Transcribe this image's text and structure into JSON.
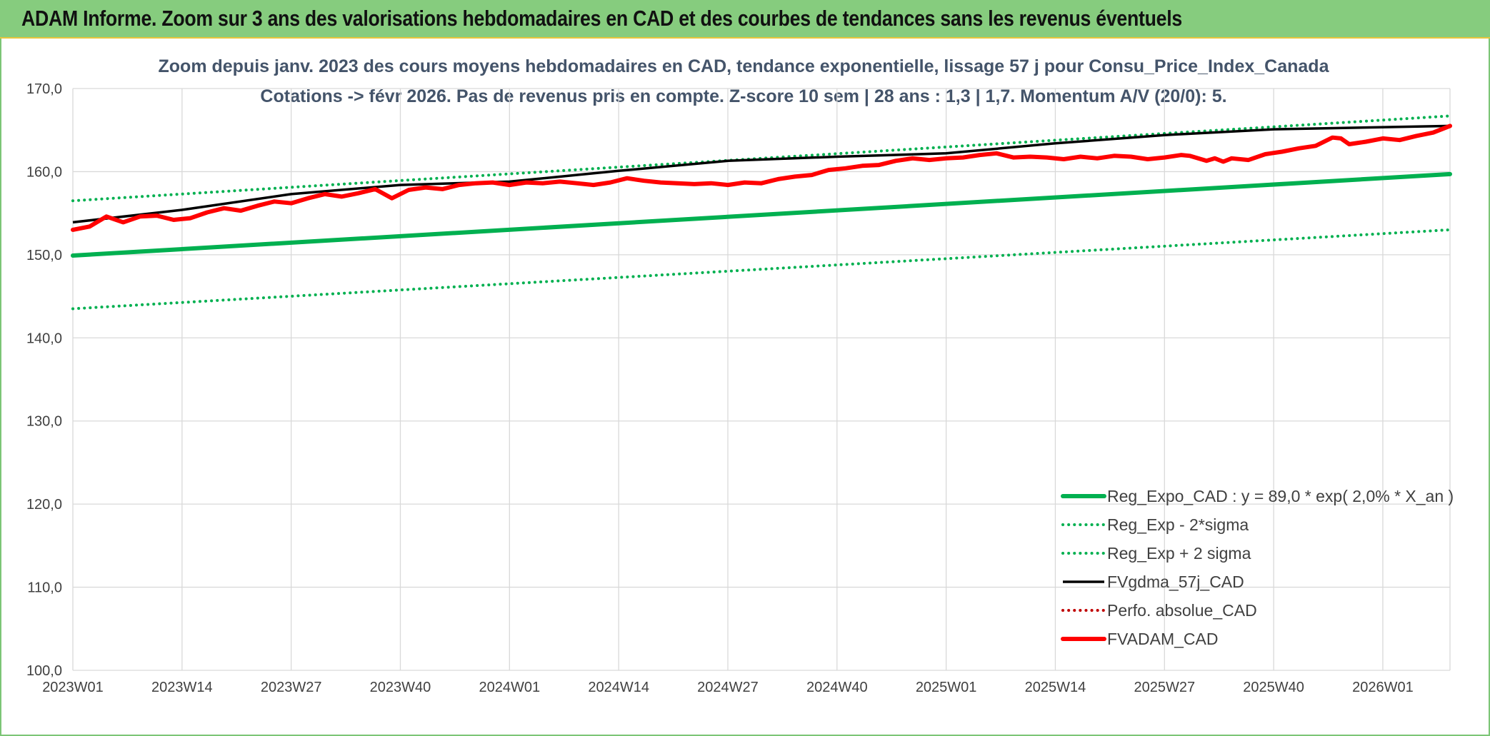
{
  "header": {
    "title": "ADAM Informe. Zoom sur 3 ans des valorisations hebdomadaires en CAD et des courbes de tendances sans les revenus éventuels"
  },
  "colors": {
    "banner": "#86cc7e",
    "trend": "#00b050",
    "smooth": "#000000",
    "price": "#ff0000",
    "grid": "#d9d9d9"
  },
  "chart_data": {
    "type": "line",
    "title": "",
    "subtitle_line1": "Zoom depuis janv. 2023 des cours moyens hebdomadaires en CAD, tendance exponentielle, lissage 57 j pour Consu_Price_Index_Canada",
    "subtitle_line2": "Cotations -> févr 2026. Pas de revenus pris en compte. Z-score 10 sem | 28 ans : 1,3 | 1,7. Momentum A/V (20/0): 5.",
    "xlabel": "",
    "ylabel": "",
    "ylim": [
      100,
      170
    ],
    "yticks": [
      "100,0",
      "110,0",
      "120,0",
      "130,0",
      "140,0",
      "150,0",
      "160,0",
      "170,0"
    ],
    "xticks": [
      "2023W01",
      "2023W14",
      "2023W27",
      "2023W40",
      "2024W01",
      "2024W14",
      "2024W27",
      "2024W40",
      "2025W01",
      "2025W14",
      "2025W27",
      "2025W40",
      "2026W01"
    ],
    "x_range_weeks": [
      0,
      164
    ],
    "grid": true,
    "legend_position": "bottom-right",
    "series": [
      {
        "name": "Reg_Expo_CAD : y = 89,0 * exp( 2,0% *  X_an )",
        "style": "solid-thick",
        "color": "#00b050",
        "points": [
          [
            0,
            149.9
          ],
          [
            164,
            159.7
          ]
        ]
      },
      {
        "name": "Reg_Exp - 2*sigma",
        "style": "dotted",
        "color": "#00b050",
        "points": [
          [
            0,
            143.5
          ],
          [
            164,
            153.0
          ]
        ]
      },
      {
        "name": "Reg_Exp + 2 sigma",
        "style": "dotted",
        "color": "#00b050",
        "points": [
          [
            0,
            156.5
          ],
          [
            164,
            166.7
          ]
        ]
      },
      {
        "name": "FVgdma_57j_CAD",
        "style": "solid",
        "color": "#000000",
        "points": [
          [
            0,
            153.9
          ],
          [
            13,
            155.4
          ],
          [
            26,
            157.3
          ],
          [
            39,
            158.4
          ],
          [
            52,
            158.8
          ],
          [
            65,
            160.1
          ],
          [
            78,
            161.3
          ],
          [
            91,
            161.8
          ],
          [
            104,
            162.2
          ],
          [
            117,
            163.4
          ],
          [
            130,
            164.4
          ],
          [
            143,
            165.1
          ],
          [
            164,
            165.5
          ]
        ]
      },
      {
        "name": "Perfo. absolue_CAD",
        "style": "dotted",
        "color": "#c00000",
        "points": []
      },
      {
        "name": "FVADAM_CAD",
        "style": "solid-thick",
        "color": "#ff0000",
        "points": [
          [
            0,
            153.0
          ],
          [
            2,
            153.4
          ],
          [
            4,
            154.6
          ],
          [
            6,
            153.9
          ],
          [
            8,
            154.6
          ],
          [
            10,
            154.7
          ],
          [
            12,
            154.2
          ],
          [
            14,
            154.4
          ],
          [
            16,
            155.1
          ],
          [
            18,
            155.6
          ],
          [
            20,
            155.3
          ],
          [
            22,
            155.9
          ],
          [
            24,
            156.4
          ],
          [
            26,
            156.2
          ],
          [
            28,
            156.8
          ],
          [
            30,
            157.3
          ],
          [
            32,
            157.0
          ],
          [
            34,
            157.4
          ],
          [
            36,
            157.9
          ],
          [
            38,
            156.8
          ],
          [
            40,
            157.8
          ],
          [
            42,
            158.1
          ],
          [
            44,
            157.9
          ],
          [
            46,
            158.4
          ],
          [
            48,
            158.6
          ],
          [
            50,
            158.7
          ],
          [
            52,
            158.4
          ],
          [
            54,
            158.7
          ],
          [
            56,
            158.6
          ],
          [
            58,
            158.8
          ],
          [
            60,
            158.6
          ],
          [
            62,
            158.4
          ],
          [
            64,
            158.7
          ],
          [
            66,
            159.2
          ],
          [
            68,
            158.9
          ],
          [
            70,
            158.7
          ],
          [
            72,
            158.6
          ],
          [
            74,
            158.5
          ],
          [
            76,
            158.6
          ],
          [
            78,
            158.4
          ],
          [
            80,
            158.7
          ],
          [
            82,
            158.6
          ],
          [
            84,
            159.1
          ],
          [
            86,
            159.4
          ],
          [
            88,
            159.6
          ],
          [
            90,
            160.2
          ],
          [
            92,
            160.4
          ],
          [
            94,
            160.7
          ],
          [
            96,
            160.8
          ],
          [
            98,
            161.3
          ],
          [
            100,
            161.6
          ],
          [
            102,
            161.4
          ],
          [
            104,
            161.6
          ],
          [
            106,
            161.7
          ],
          [
            108,
            162.0
          ],
          [
            110,
            162.2
          ],
          [
            112,
            161.7
          ],
          [
            114,
            161.8
          ],
          [
            116,
            161.7
          ],
          [
            118,
            161.5
          ],
          [
            120,
            161.8
          ],
          [
            122,
            161.6
          ],
          [
            124,
            161.9
          ],
          [
            126,
            161.8
          ],
          [
            128,
            161.5
          ],
          [
            130,
            161.7
          ],
          [
            132,
            162.0
          ],
          [
            133,
            161.9
          ],
          [
            135,
            161.3
          ],
          [
            136,
            161.6
          ],
          [
            137,
            161.2
          ],
          [
            138,
            161.6
          ],
          [
            140,
            161.4
          ],
          [
            142,
            162.1
          ],
          [
            144,
            162.4
          ],
          [
            146,
            162.8
          ],
          [
            148,
            163.1
          ],
          [
            150,
            164.1
          ],
          [
            151,
            164.0
          ],
          [
            152,
            163.3
          ],
          [
            154,
            163.6
          ],
          [
            156,
            164.0
          ],
          [
            158,
            163.8
          ],
          [
            160,
            164.3
          ],
          [
            162,
            164.7
          ],
          [
            164,
            165.5
          ]
        ]
      }
    ]
  }
}
